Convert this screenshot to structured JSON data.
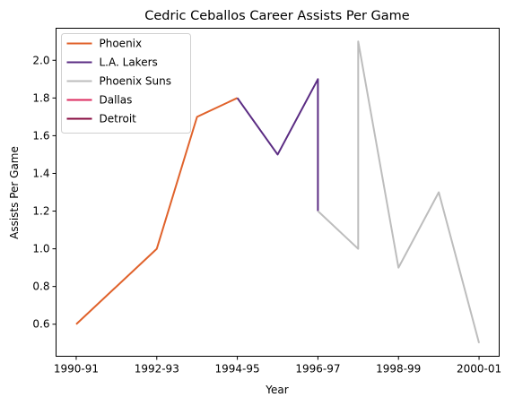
{
  "chart_data": {
    "type": "line",
    "title": "Cedric Ceballos Career Assists Per Game",
    "xlabel": "Year",
    "ylabel": "Assists Per Game",
    "x_tick_labels": [
      "1990-91",
      "1992-93",
      "1994-95",
      "1996-97",
      "1998-99",
      "2000-01"
    ],
    "y_tick_labels": [
      "0.6",
      "0.8",
      "1.0",
      "1.2",
      "1.4",
      "1.6",
      "1.8",
      "2.0"
    ],
    "y_ticks": [
      0.6,
      0.8,
      1.0,
      1.2,
      1.4,
      1.6,
      1.8,
      2.0
    ],
    "xlim": [
      "1990-91",
      "2000-01"
    ],
    "ylim": [
      0.43,
      2.17
    ],
    "grid": false,
    "legend_position": "upper-left",
    "series": [
      {
        "name": "Phoenix",
        "color": "#e0622b",
        "points": [
          {
            "x": "1990-91",
            "y": 0.6
          },
          {
            "x": "1992-93",
            "y": 1.0
          },
          {
            "x": "1993-94",
            "y": 1.7
          },
          {
            "x": "1994-95",
            "y": 1.8
          }
        ]
      },
      {
        "name": "L.A. Lakers",
        "color": "#5b2c83",
        "points": [
          {
            "x": "1994-95",
            "y": 1.8
          },
          {
            "x": "1995-96",
            "y": 1.5
          },
          {
            "x": "1996-97",
            "y": 1.9
          },
          {
            "x": "1996-97",
            "y": 1.2
          }
        ]
      },
      {
        "name": "Phoenix Suns",
        "color": "#bdbdbd",
        "points": [
          {
            "x": "1996-97",
            "y": 1.2
          },
          {
            "x": "1997-98",
            "y": 1.0
          },
          {
            "x": "1997-98",
            "y": 2.1
          },
          {
            "x": "1998-99",
            "y": 0.9
          },
          {
            "x": "1999-00",
            "y": 1.3
          },
          {
            "x": "2000-01",
            "y": 0.5
          }
        ]
      },
      {
        "name": "Dallas",
        "color": "#dc2a5e",
        "points": []
      },
      {
        "name": "Detroit",
        "color": "#870a3f",
        "points": []
      }
    ]
  }
}
